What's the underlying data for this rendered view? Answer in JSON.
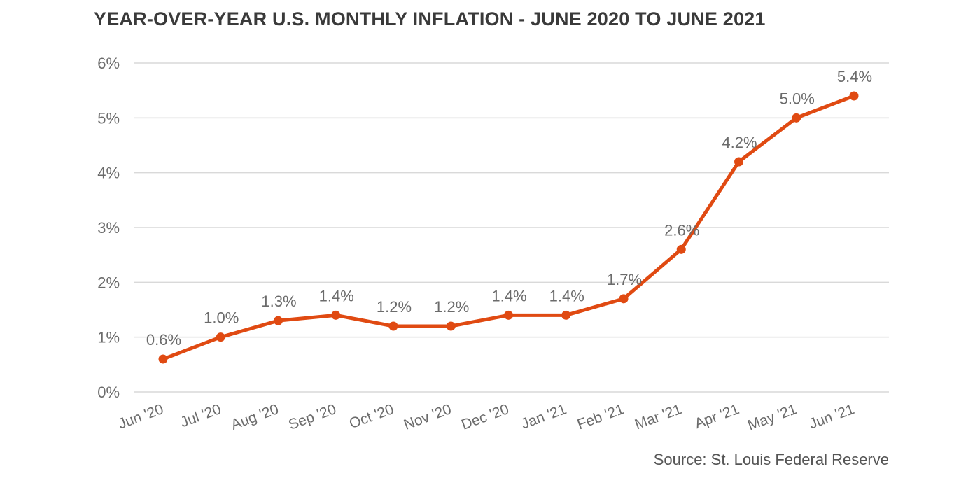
{
  "chart_data": {
    "type": "line",
    "title": "YEAR-OVER-YEAR U.S. MONTHLY INFLATION - JUNE 2020 TO JUNE  2021",
    "categories": [
      "Jun '20",
      "Jul '20",
      "Aug '20",
      "Sep '20",
      "Oct '20",
      "Nov '20",
      "Dec '20",
      "Jan '21",
      "Feb '21",
      "Mar '21",
      "Apr '21",
      "May '21",
      "Jun '21"
    ],
    "series": [
      {
        "values": [
          0.6,
          1.0,
          1.3,
          1.4,
          1.2,
          1.2,
          1.4,
          1.4,
          1.7,
          2.6,
          4.2,
          5.0,
          5.4
        ],
        "data_labels": [
          "0.6%",
          "1.0%",
          "1.3%",
          "1.4%",
          "1.2%",
          "1.2%",
          "1.4%",
          "1.4%",
          "1.7%",
          "2.6%",
          "4.2%",
          "5.0%",
          "5.4%"
        ],
        "color": "#e04a12"
      }
    ],
    "ylim": [
      0,
      6
    ],
    "y_ticks": [
      0,
      1,
      2,
      3,
      4,
      5,
      6
    ],
    "y_tick_labels": [
      "0%",
      "1%",
      "2%",
      "3%",
      "4%",
      "5%",
      "6%"
    ],
    "xlabel": "",
    "ylabel": "",
    "grid": true,
    "gridline_color": "#d9d9d9",
    "source": "Source: St. Louis Federal Reserve"
  }
}
